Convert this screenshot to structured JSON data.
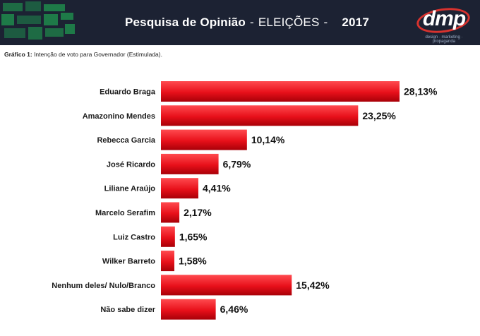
{
  "header": {
    "title_bold": "Pesquisa de Opinião",
    "title_rest": "ELEIÇÕES",
    "title_dash1": "-",
    "title_dash2": "-",
    "year": "2017",
    "logo_text": "dmp",
    "logo_tagline": "design · marketing · propaganda"
  },
  "caption": {
    "label": "Gráfico 1:",
    "text": "Intenção de voto para Governador (Estimulada)."
  },
  "colors": {
    "bar": "#e8101a",
    "bar_dark": "#a80008",
    "header_bg": "#1c2233",
    "mosaic": "#1f8a4c"
  },
  "chart_data": {
    "type": "bar",
    "orientation": "horizontal",
    "title": "",
    "xlabel": "",
    "ylabel": "",
    "xlim": [
      0,
      28.13
    ],
    "categories": [
      "Eduardo Braga",
      "Amazonino Mendes",
      "Rebecca Garcia",
      "José Ricardo",
      "Liliane Araújo",
      "Marcelo Serafim",
      "Luiz Castro",
      "Wilker Barreto",
      "Nenhum deles/ Nulo/Branco",
      "Não sabe dizer"
    ],
    "values": [
      28.13,
      23.25,
      10.14,
      6.79,
      4.41,
      2.17,
      1.65,
      1.58,
      15.42,
      6.46
    ],
    "value_labels": [
      "28,13%",
      "23,25%",
      "10,14%",
      "6,79%",
      "4,41%",
      "2,17%",
      "1,65%",
      "1,58%",
      "15,42%",
      "6,46%"
    ],
    "grid": false,
    "legend": "none"
  }
}
